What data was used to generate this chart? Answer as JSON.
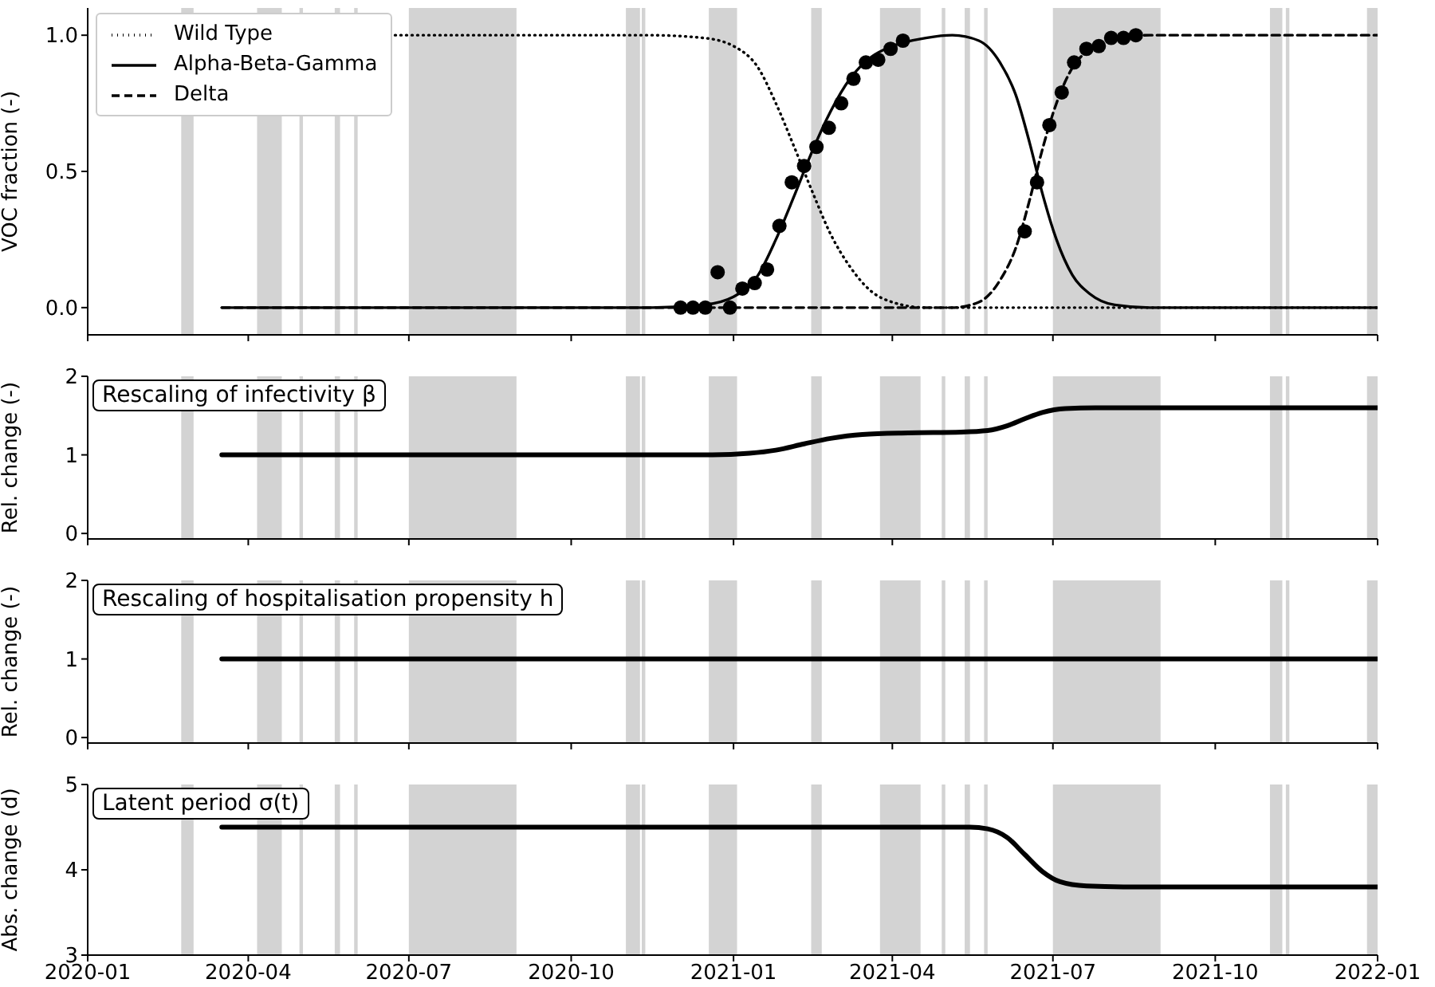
{
  "chart_data": [
    {
      "type": "line",
      "ylabel": "VOC fraction (-)",
      "xlim": [
        "2020-01-01",
        "2022-01-01"
      ],
      "xticks": [
        "2020-01",
        "2020-04",
        "2020-07",
        "2020-10",
        "2021-01",
        "2021-04",
        "2021-07",
        "2021-10",
        "2022-01"
      ],
      "ylim": [
        -0.1,
        1.1
      ],
      "yticks": [
        {
          "value": 0,
          "label": "0.0"
        },
        {
          "value": 0.5,
          "label": "0.5"
        },
        {
          "value": 1,
          "label": "1.0"
        }
      ],
      "tick_labels": "y",
      "legend": "top left",
      "grid": false,
      "bands": [
        {
          "axis": "x",
          "from": "2020-02-23",
          "to": "2020-03-01"
        },
        {
          "axis": "x",
          "from": "2020-04-06",
          "to": "2020-04-20"
        },
        {
          "axis": "x",
          "from": "2020-04-30",
          "to": "2020-05-02"
        },
        {
          "axis": "x",
          "from": "2020-05-20",
          "to": "2020-05-23"
        },
        {
          "axis": "x",
          "from": "2020-05-31",
          "to": "2020-06-02"
        },
        {
          "axis": "x",
          "from": "2020-07-01",
          "to": "2020-08-31"
        },
        {
          "axis": "x",
          "from": "2020-11-01",
          "to": "2020-11-09"
        },
        {
          "axis": "x",
          "from": "2020-11-10",
          "to": "2020-11-12"
        },
        {
          "axis": "x",
          "from": "2020-12-18",
          "to": "2021-01-03"
        },
        {
          "axis": "x",
          "from": "2021-02-14",
          "to": "2021-02-20"
        },
        {
          "axis": "x",
          "from": "2021-03-25",
          "to": "2021-04-17"
        },
        {
          "axis": "x",
          "from": "2021-04-29",
          "to": "2021-05-01"
        },
        {
          "axis": "x",
          "from": "2021-05-12",
          "to": "2021-05-15"
        },
        {
          "axis": "x",
          "from": "2021-05-23",
          "to": "2021-05-25"
        },
        {
          "axis": "x",
          "from": "2021-07-01",
          "to": "2021-08-31"
        },
        {
          "axis": "x",
          "from": "2021-11-01",
          "to": "2021-11-08"
        },
        {
          "axis": "x",
          "from": "2021-11-10",
          "to": "2021-11-12"
        },
        {
          "axis": "x",
          "from": "2021-12-26",
          "to": "2022-01-01"
        }
      ],
      "series": [
        {
          "name": "Wild Type",
          "line_style": "dotted",
          "color": "#000000",
          "x": [
            "2020-06-20",
            "2020-11-15",
            "2020-12-15",
            "2021-01-01",
            "2021-01-15",
            "2021-01-25",
            "2021-02-05",
            "2021-02-15",
            "2021-02-25",
            "2021-03-08",
            "2021-03-20",
            "2021-04-01",
            "2021-04-20",
            "2022-01-01"
          ],
          "values": [
            1,
            1,
            0.99,
            0.96,
            0.88,
            0.75,
            0.58,
            0.42,
            0.27,
            0.15,
            0.06,
            0.02,
            0,
            0
          ]
        },
        {
          "name": "Alpha-Beta-Gamma",
          "line_style": "solid",
          "color": "#000000",
          "x": [
            "2020-03-17",
            "2020-11-15",
            "2020-12-15",
            "2021-01-01",
            "2021-01-15",
            "2021-01-25",
            "2021-02-05",
            "2021-02-15",
            "2021-02-25",
            "2021-03-08",
            "2021-03-20",
            "2021-04-01",
            "2021-04-20",
            "2021-05-05",
            "2021-05-20",
            "2021-06-01",
            "2021-06-10",
            "2021-06-18",
            "2021-06-25",
            "2021-07-03",
            "2021-07-12",
            "2021-07-22",
            "2021-08-05",
            "2021-08-25",
            "2022-01-01"
          ],
          "values": [
            0,
            0,
            0.01,
            0.04,
            0.12,
            0.25,
            0.42,
            0.58,
            0.72,
            0.84,
            0.92,
            0.96,
            0.99,
            1,
            0.98,
            0.9,
            0.78,
            0.6,
            0.42,
            0.25,
            0.12,
            0.05,
            0.01,
            0,
            0
          ]
        },
        {
          "name": "Delta",
          "line_style": "dashed",
          "color": "#000000",
          "x": [
            "2020-03-17",
            "2021-05-05",
            "2021-05-20",
            "2021-06-01",
            "2021-06-10",
            "2021-06-18",
            "2021-06-25",
            "2021-07-03",
            "2021-07-12",
            "2021-07-22",
            "2021-08-05",
            "2021-08-25",
            "2022-01-01"
          ],
          "values": [
            0,
            0,
            0.02,
            0.1,
            0.22,
            0.4,
            0.58,
            0.75,
            0.88,
            0.95,
            0.99,
            1,
            1
          ]
        },
        {
          "type": "scatter",
          "marker": "circle",
          "color": "#000000",
          "x": [
            "2020-12-02",
            "2020-12-09",
            "2020-12-16",
            "2020-12-23",
            "2020-12-30",
            "2021-01-06",
            "2021-01-13",
            "2021-01-20",
            "2021-01-27",
            "2021-02-03",
            "2021-02-10",
            "2021-02-17",
            "2021-02-24",
            "2021-03-03",
            "2021-03-10",
            "2021-03-17",
            "2021-03-24",
            "2021-03-31",
            "2021-04-07",
            "2021-06-15",
            "2021-06-22",
            "2021-06-29",
            "2021-07-06",
            "2021-07-13",
            "2021-07-20",
            "2021-07-27",
            "2021-08-03",
            "2021-08-10",
            "2021-08-17"
          ],
          "values": [
            0,
            0,
            0,
            0.13,
            0,
            0.07,
            0.09,
            0.14,
            0.3,
            0.46,
            0.52,
            0.59,
            0.66,
            0.75,
            0.84,
            0.9,
            0.91,
            0.95,
            0.98,
            0.28,
            0.46,
            0.67,
            0.79,
            0.9,
            0.95,
            0.96,
            0.99,
            0.99,
            1
          ]
        }
      ]
    },
    {
      "type": "line",
      "ylabel": "Rel. change (-)",
      "annotations": [
        "Rescaling of infectivity β"
      ],
      "xlim": [
        "2020-01-01",
        "2022-01-01"
      ],
      "xticks": [
        "2020-01",
        "2020-04",
        "2020-07",
        "2020-10",
        "2021-01",
        "2021-04",
        "2021-07",
        "2021-10",
        "2022-01"
      ],
      "ylim": [
        -0.07,
        2
      ],
      "yticks": [
        0,
        1,
        2
      ],
      "tick_labels": "y",
      "grid": false,
      "bands": [
        {
          "axis": "x",
          "from": "2020-02-23",
          "to": "2020-03-01"
        },
        {
          "axis": "x",
          "from": "2020-04-06",
          "to": "2020-04-20"
        },
        {
          "axis": "x",
          "from": "2020-04-30",
          "to": "2020-05-02"
        },
        {
          "axis": "x",
          "from": "2020-05-20",
          "to": "2020-05-23"
        },
        {
          "axis": "x",
          "from": "2020-05-31",
          "to": "2020-06-02"
        },
        {
          "axis": "x",
          "from": "2020-07-01",
          "to": "2020-08-31"
        },
        {
          "axis": "x",
          "from": "2020-11-01",
          "to": "2020-11-09"
        },
        {
          "axis": "x",
          "from": "2020-11-10",
          "to": "2020-11-12"
        },
        {
          "axis": "x",
          "from": "2020-12-18",
          "to": "2021-01-03"
        },
        {
          "axis": "x",
          "from": "2021-02-14",
          "to": "2021-02-20"
        },
        {
          "axis": "x",
          "from": "2021-03-25",
          "to": "2021-04-17"
        },
        {
          "axis": "x",
          "from": "2021-04-29",
          "to": "2021-05-01"
        },
        {
          "axis": "x",
          "from": "2021-05-12",
          "to": "2021-05-15"
        },
        {
          "axis": "x",
          "from": "2021-05-23",
          "to": "2021-05-25"
        },
        {
          "axis": "x",
          "from": "2021-07-01",
          "to": "2021-08-31"
        },
        {
          "axis": "x",
          "from": "2021-11-01",
          "to": "2021-11-08"
        },
        {
          "axis": "x",
          "from": "2021-11-10",
          "to": "2021-11-12"
        },
        {
          "axis": "x",
          "from": "2021-12-26",
          "to": "2022-01-01"
        }
      ],
      "series": [
        {
          "color": "#000000",
          "x": [
            "2020-03-17",
            "2020-12-20",
            "2021-01-10",
            "2021-01-25",
            "2021-02-10",
            "2021-02-25",
            "2021-03-15",
            "2021-04-10",
            "2021-05-10",
            "2021-05-25",
            "2021-06-05",
            "2021-06-15",
            "2021-06-25",
            "2021-07-08",
            "2021-07-25",
            "2022-01-01"
          ],
          "values": [
            1,
            1,
            1.02,
            1.06,
            1.14,
            1.21,
            1.26,
            1.28,
            1.29,
            1.31,
            1.37,
            1.46,
            1.54,
            1.59,
            1.6,
            1.6
          ]
        }
      ]
    },
    {
      "type": "line",
      "ylabel": "Rel. change (-)",
      "annotations": [
        "Rescaling of hospitalisation propensity h"
      ],
      "xlim": [
        "2020-01-01",
        "2022-01-01"
      ],
      "xticks": [
        "2020-01",
        "2020-04",
        "2020-07",
        "2020-10",
        "2021-01",
        "2021-04",
        "2021-07",
        "2021-10",
        "2022-01"
      ],
      "ylim": [
        -0.07,
        2
      ],
      "yticks": [
        0,
        1,
        2
      ],
      "tick_labels": "y",
      "grid": false,
      "bands": [
        {
          "axis": "x",
          "from": "2020-02-23",
          "to": "2020-03-01"
        },
        {
          "axis": "x",
          "from": "2020-04-06",
          "to": "2020-04-20"
        },
        {
          "axis": "x",
          "from": "2020-04-30",
          "to": "2020-05-02"
        },
        {
          "axis": "x",
          "from": "2020-05-20",
          "to": "2020-05-23"
        },
        {
          "axis": "x",
          "from": "2020-05-31",
          "to": "2020-06-02"
        },
        {
          "axis": "x",
          "from": "2020-07-01",
          "to": "2020-08-31"
        },
        {
          "axis": "x",
          "from": "2020-11-01",
          "to": "2020-11-09"
        },
        {
          "axis": "x",
          "from": "2020-11-10",
          "to": "2020-11-12"
        },
        {
          "axis": "x",
          "from": "2020-12-18",
          "to": "2021-01-03"
        },
        {
          "axis": "x",
          "from": "2021-02-14",
          "to": "2021-02-20"
        },
        {
          "axis": "x",
          "from": "2021-03-25",
          "to": "2021-04-17"
        },
        {
          "axis": "x",
          "from": "2021-04-29",
          "to": "2021-05-01"
        },
        {
          "axis": "x",
          "from": "2021-05-12",
          "to": "2021-05-15"
        },
        {
          "axis": "x",
          "from": "2021-05-23",
          "to": "2021-05-25"
        },
        {
          "axis": "x",
          "from": "2021-07-01",
          "to": "2021-08-31"
        },
        {
          "axis": "x",
          "from": "2021-11-01",
          "to": "2021-11-08"
        },
        {
          "axis": "x",
          "from": "2021-11-10",
          "to": "2021-11-12"
        },
        {
          "axis": "x",
          "from": "2021-12-26",
          "to": "2022-01-01"
        }
      ],
      "series": [
        {
          "color": "#000000",
          "x": [
            "2020-03-17",
            "2022-01-01"
          ],
          "values": [
            1,
            1
          ]
        }
      ]
    },
    {
      "type": "line",
      "ylabel": "Abs. change (d)",
      "annotations": [
        "Latent period σ(t)"
      ],
      "xlim": [
        "2020-01-01",
        "2022-01-01"
      ],
      "xticks": [
        "2020-01",
        "2020-04",
        "2020-07",
        "2020-10",
        "2021-01",
        "2021-04",
        "2021-07",
        "2021-10",
        "2022-01"
      ],
      "ylim": [
        3,
        5
      ],
      "yticks": [
        3,
        4,
        5
      ],
      "grid": false,
      "bands": [
        {
          "axis": "x",
          "from": "2020-02-23",
          "to": "2020-03-01"
        },
        {
          "axis": "x",
          "from": "2020-04-06",
          "to": "2020-04-20"
        },
        {
          "axis": "x",
          "from": "2020-04-30",
          "to": "2020-05-02"
        },
        {
          "axis": "x",
          "from": "2020-05-20",
          "to": "2020-05-23"
        },
        {
          "axis": "x",
          "from": "2020-05-31",
          "to": "2020-06-02"
        },
        {
          "axis": "x",
          "from": "2020-07-01",
          "to": "2020-08-31"
        },
        {
          "axis": "x",
          "from": "2020-11-01",
          "to": "2020-11-09"
        },
        {
          "axis": "x",
          "from": "2020-11-10",
          "to": "2020-11-12"
        },
        {
          "axis": "x",
          "from": "2020-12-18",
          "to": "2021-01-03"
        },
        {
          "axis": "x",
          "from": "2021-02-14",
          "to": "2021-02-20"
        },
        {
          "axis": "x",
          "from": "2021-03-25",
          "to": "2021-04-17"
        },
        {
          "axis": "x",
          "from": "2021-04-29",
          "to": "2021-05-01"
        },
        {
          "axis": "x",
          "from": "2021-05-12",
          "to": "2021-05-15"
        },
        {
          "axis": "x",
          "from": "2021-05-23",
          "to": "2021-05-25"
        },
        {
          "axis": "x",
          "from": "2021-07-01",
          "to": "2021-08-31"
        },
        {
          "axis": "x",
          "from": "2021-11-01",
          "to": "2021-11-08"
        },
        {
          "axis": "x",
          "from": "2021-11-10",
          "to": "2021-11-12"
        },
        {
          "axis": "x",
          "from": "2021-12-26",
          "to": "2022-01-01"
        }
      ],
      "series": [
        {
          "color": "#000000",
          "x": [
            "2020-03-17",
            "2021-05-15",
            "2021-05-25",
            "2021-06-05",
            "2021-06-15",
            "2021-06-25",
            "2021-07-05",
            "2021-07-20",
            "2021-08-10",
            "2022-01-01"
          ],
          "values": [
            4.5,
            4.5,
            4.48,
            4.38,
            4.18,
            3.98,
            3.86,
            3.81,
            3.8,
            3.8
          ]
        }
      ]
    }
  ]
}
